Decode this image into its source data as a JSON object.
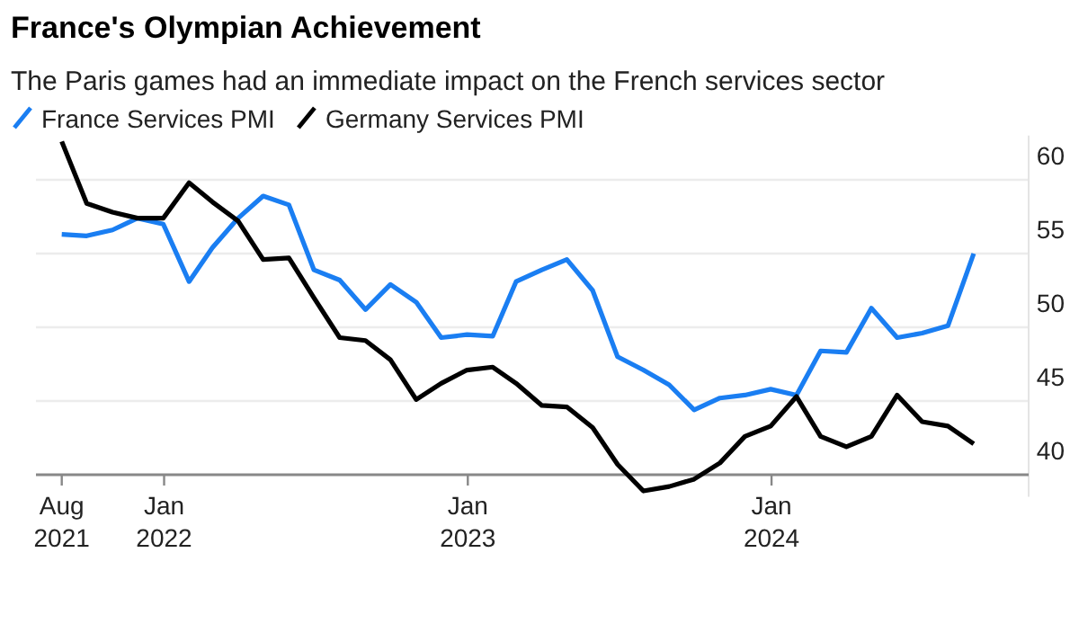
{
  "chart_data": {
    "type": "line",
    "title": "France's Olympian Achievement",
    "subtitle": "The Paris games had an immediate impact on the French services sector",
    "x": [
      "2021-08-31",
      "2021-09-30",
      "2021-10-31",
      "2021-11-30",
      "2021-12-31",
      "2022-01-31",
      "2022-02-28",
      "2022-03-31",
      "2022-04-30",
      "2022-05-31",
      "2022-06-30",
      "2022-07-31",
      "2022-08-31",
      "2022-09-30",
      "2022-10-31",
      "2022-11-30",
      "2022-12-31",
      "2023-01-31",
      "2023-02-28",
      "2023-03-31",
      "2023-04-30",
      "2023-05-31",
      "2023-06-30",
      "2023-07-31",
      "2023-08-31",
      "2023-09-30",
      "2023-10-31",
      "2023-11-30",
      "2023-12-31",
      "2024-01-31",
      "2024-02-29",
      "2024-03-31",
      "2024-04-30",
      "2024-05-31",
      "2024-06-30",
      "2024-07-31",
      "2024-08-31"
    ],
    "series": [
      {
        "name": "France Services PMI",
        "color": "#1a7ef2",
        "values": [
          56.3,
          56.2,
          56.6,
          57.4,
          57.0,
          53.1,
          55.4,
          57.4,
          58.9,
          58.3,
          53.9,
          53.2,
          51.2,
          52.9,
          51.7,
          49.3,
          49.5,
          49.4,
          53.1,
          53.9,
          54.6,
          52.5,
          48.0,
          47.1,
          46.1,
          44.4,
          45.2,
          45.4,
          45.8,
          45.4,
          48.4,
          48.3,
          51.3,
          49.3,
          49.6,
          50.1,
          55.0
        ]
      },
      {
        "name": "Germany Services PMI",
        "color": "#000000",
        "values": [
          62.6,
          58.4,
          57.8,
          57.4,
          57.4,
          59.8,
          58.5,
          57.2,
          54.6,
          54.7,
          52.0,
          49.3,
          49.1,
          47.8,
          45.1,
          46.2,
          47.1,
          47.3,
          46.2,
          44.7,
          44.6,
          43.2,
          40.7,
          38.9,
          39.2,
          39.7,
          40.8,
          42.6,
          43.3,
          45.3,
          42.6,
          41.9,
          42.6,
          45.4,
          43.6,
          43.3,
          42.1
        ]
      }
    ],
    "xlim": [
      "2021-07-31",
      "2024-11-05"
    ],
    "xticks": [
      {
        "value": "2021-08-31",
        "label": "Aug\n2021"
      },
      {
        "value": "2022-01-01",
        "label": "Jan\n2022"
      },
      {
        "value": "2023-01-01",
        "label": "Jan\n2023"
      },
      {
        "value": "2024-01-01",
        "label": "Jan\n2024"
      }
    ],
    "ylim": [
      38.5,
      63
    ],
    "yticks": [
      40,
      45,
      50,
      55,
      60
    ],
    "grid": "y",
    "legend": "top left",
    "line_style": "solid",
    "marker": "none"
  }
}
